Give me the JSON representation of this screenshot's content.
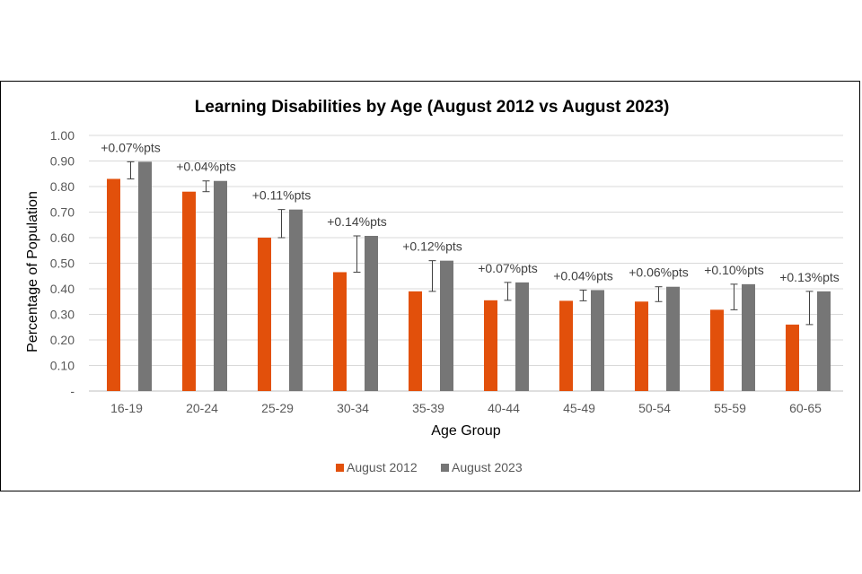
{
  "chart_data": {
    "type": "bar",
    "title": "Learning Disabilities by Age (August 2012 vs August 2023)",
    "xlabel": "Age Group",
    "ylabel": "Percentage of  Population",
    "ylim": [
      0,
      1.0
    ],
    "yticks": [
      "-",
      "0.10",
      "0.20",
      "0.30",
      "0.40",
      "0.50",
      "0.60",
      "0.70",
      "0.80",
      "0.90",
      "1.00"
    ],
    "grid": true,
    "legend_position": "bottom",
    "categories": [
      "16-19",
      "20-24",
      "25-29",
      "30-34",
      "35-39",
      "40-44",
      "45-49",
      "50-54",
      "55-59",
      "60-65"
    ],
    "series": [
      {
        "name": "August 2012",
        "color": "#E2500B",
        "values": [
          0.83,
          0.78,
          0.6,
          0.465,
          0.39,
          0.355,
          0.353,
          0.35,
          0.318,
          0.26
        ]
      },
      {
        "name": "August 2023",
        "color": "#767676",
        "values": [
          0.897,
          0.822,
          0.71,
          0.607,
          0.51,
          0.425,
          0.395,
          0.408,
          0.418,
          0.39
        ]
      }
    ],
    "annotations": [
      "+0.07%pts",
      "+0.04%pts",
      "+0.11%pts",
      "+0.14%pts",
      "+0.12%pts",
      "+0.07%pts",
      "+0.04%pts",
      "+0.06%pts",
      "+0.10%pts",
      "+0.13%pts"
    ]
  }
}
